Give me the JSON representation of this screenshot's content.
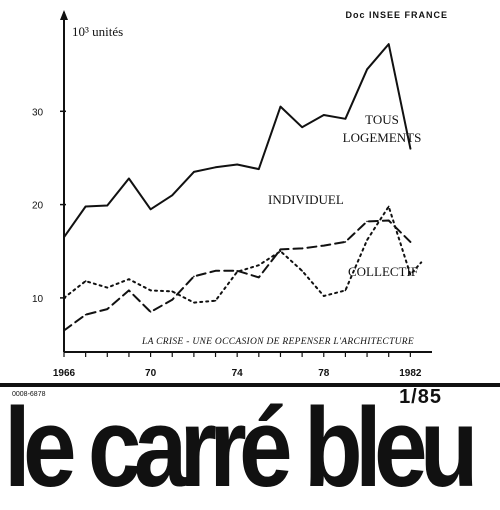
{
  "chart_data": {
    "type": "line",
    "credit": "Doc INSEE FRANCE",
    "unit_label": "10³ unités",
    "caption": "LA CRISE - UNE OCCASION DE REPENSER L'ARCHITECTURE",
    "x_tick_labels": [
      "1966",
      "70",
      "74",
      "78",
      "1982"
    ],
    "y_tick_labels": [
      "10",
      "20",
      "30"
    ],
    "xlim": [
      1966,
      1983
    ],
    "ylim": [
      4.2,
      40
    ],
    "grid": false,
    "legend": "inline labels",
    "x": [
      1966,
      1967,
      1968,
      1969,
      1970,
      1971,
      1972,
      1973,
      1974,
      1975,
      1976,
      1977,
      1978,
      1979,
      1980,
      1981,
      1982
    ],
    "series": [
      {
        "name": "TOUS LOGEMENTS",
        "style": "solid",
        "values": [
          16.5,
          19.8,
          19.9,
          22.8,
          19.5,
          21.0,
          23.5,
          24.0,
          24.3,
          23.8,
          30.5,
          28.3,
          29.6,
          29.2,
          34.5,
          37.2,
          26.0
        ],
        "label_lines": [
          "TOUS",
          "LOGEMENTS"
        ]
      },
      {
        "name": "INDIVIDUEL",
        "style": "dashed",
        "values": [
          6.5,
          8.2,
          8.8,
          10.8,
          8.5,
          9.8,
          12.3,
          12.9,
          12.9,
          12.2,
          15.2,
          15.3,
          15.6,
          16.0,
          18.2,
          18.3,
          16.0
        ],
        "label_lines": [
          "INDIVIDUEL"
        ]
      },
      {
        "name": "COLLECTIF",
        "style": "dotted",
        "values": [
          10.0,
          11.8,
          11.1,
          12.0,
          10.8,
          10.7,
          9.5,
          9.7,
          12.8,
          13.5,
          15.0,
          12.9,
          10.2,
          10.8,
          16.2,
          19.8,
          12.5,
          13.8
        ],
        "x": [
          1966,
          1967,
          1968,
          1969,
          1970,
          1971,
          1972,
          1973,
          1974,
          1975,
          1976,
          1977,
          1978,
          1979,
          1980,
          1981,
          1982,
          1982.5
        ],
        "label_lines": [
          "COLLECTIF"
        ]
      }
    ]
  },
  "masthead": {
    "issn": "0008-6878",
    "issue": "1/85",
    "title": "le carré bleu"
  }
}
